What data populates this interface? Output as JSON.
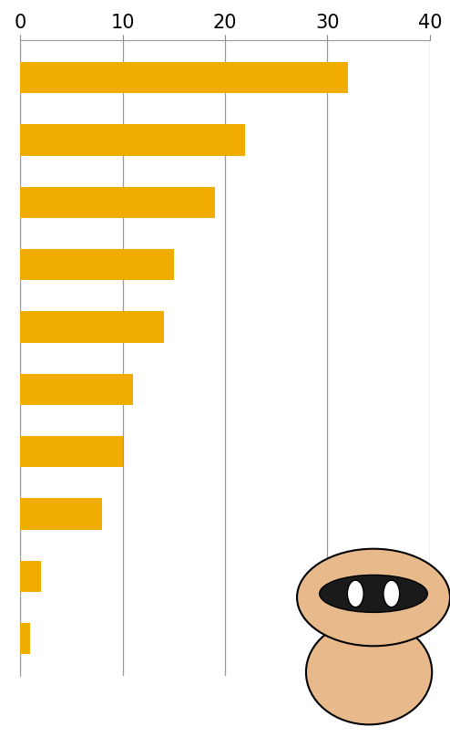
{
  "chart_data": {
    "type": "bar",
    "orientation": "horizontal",
    "categories": [
      null,
      null,
      null,
      null,
      null,
      null,
      null,
      null,
      null,
      null
    ],
    "values": [
      32,
      22,
      19,
      15,
      14,
      11,
      10,
      8,
      2,
      1
    ],
    "color": "#f0ad00",
    "xlim": [
      0,
      40
    ],
    "xticks": [
      0,
      10,
      20,
      30,
      40
    ],
    "grid": true,
    "tick_labels": "x"
  }
}
